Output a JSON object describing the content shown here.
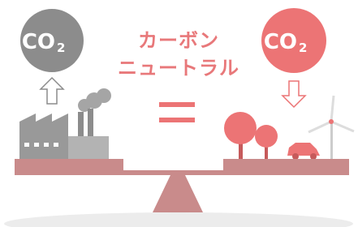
{
  "title_lines": [
    "カーボン",
    "ニュートラル"
  ],
  "left_circle": {
    "text": "CO",
    "sub": "2"
  },
  "right_circle": {
    "text": "CO",
    "sub": "2"
  }
}
